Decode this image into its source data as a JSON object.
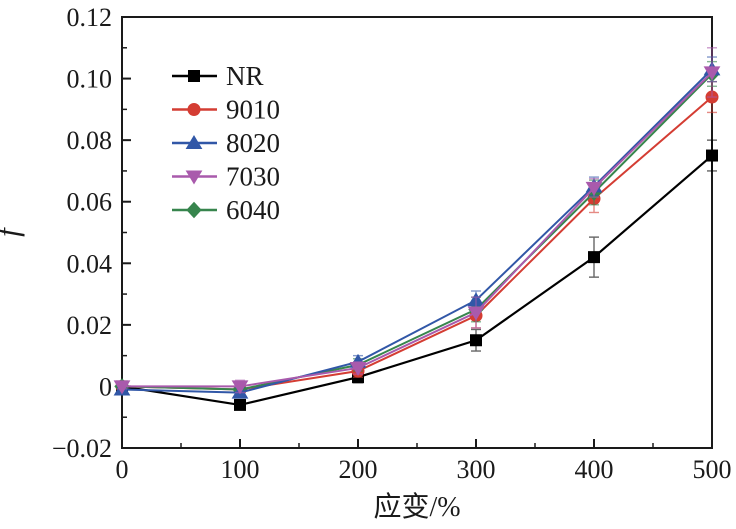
{
  "figure": {
    "background": "#ffffff",
    "axis_color": "#1a1a1a"
  },
  "chart_data": {
    "type": "line",
    "title": "",
    "xlabel": "应变/%",
    "ylabel": "f",
    "xlim": [
      0,
      500
    ],
    "ylim": [
      -0.02,
      0.12
    ],
    "xticks": [
      0,
      100,
      200,
      300,
      400,
      500
    ],
    "xtick_labels": [
      "0",
      "100",
      "200",
      "300",
      "400",
      "500"
    ],
    "xminor": [
      50,
      150,
      250,
      350,
      450
    ],
    "yticks": [
      -0.02,
      0,
      0.02,
      0.04,
      0.06,
      0.08,
      0.1,
      0.12
    ],
    "ytick_labels": [
      "−0.02",
      "0",
      "0.02",
      "0.04",
      "0.06",
      "0.08",
      "0.10",
      "0.12"
    ],
    "yminor": [
      -0.01,
      0.01,
      0.03,
      0.05,
      0.07,
      0.09,
      0.11
    ],
    "grid": false,
    "legend_position": "upper-left-inside",
    "categories": [
      0,
      100,
      200,
      300,
      400,
      500
    ],
    "series": [
      {
        "name": "NR",
        "color": "#000000",
        "marker": "square",
        "values": [
          0.0,
          -0.006,
          0.003,
          0.015,
          0.042,
          0.075
        ],
        "errors": [
          0.0008,
          0.0012,
          0.0018,
          0.0035,
          0.0065,
          0.005
        ]
      },
      {
        "name": "9010",
        "color": "#d43d33",
        "marker": "circle",
        "values": [
          0.0,
          -0.001,
          0.005,
          0.023,
          0.061,
          0.094
        ],
        "errors": [
          0.0008,
          0.0015,
          0.002,
          0.004,
          0.0045,
          0.005
        ]
      },
      {
        "name": "8020",
        "color": "#3157a7",
        "marker": "triangle-up",
        "values": [
          -0.001,
          -0.002,
          0.008,
          0.028,
          0.065,
          0.103
        ],
        "errors": [
          0.0008,
          0.0015,
          0.002,
          0.003,
          0.003,
          0.004
        ]
      },
      {
        "name": "7030",
        "color": "#a95aac",
        "marker": "triangle-down",
        "values": [
          0.0,
          0.0,
          0.006,
          0.024,
          0.0645,
          0.102
        ],
        "errors": [
          0.0008,
          0.002,
          0.002,
          0.005,
          0.003,
          0.008
        ]
      },
      {
        "name": "6040",
        "color": "#37854d",
        "marker": "diamond",
        "values": [
          0.0,
          -0.001,
          0.007,
          0.025,
          0.063,
          0.1015
        ],
        "errors": [
          0.0008,
          0.0015,
          0.002,
          0.004,
          0.004,
          0.004
        ]
      }
    ],
    "draw_order": [
      "NR",
      "9010",
      "6040",
      "8020",
      "7030"
    ]
  }
}
